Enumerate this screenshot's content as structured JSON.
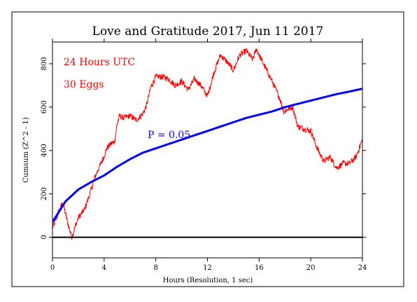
{
  "chart_data": {
    "type": "line",
    "title": "Love and Gratitude 2017, Jun 11 2017",
    "xlabel": "Hours (Resolution, 1 sec)",
    "ylabel": "Cumsum (Z^2 - 1)",
    "xlim": [
      0,
      24
    ],
    "ylim": [
      -95,
      900
    ],
    "x_ticks": [
      0,
      4,
      8,
      12,
      16,
      20,
      24
    ],
    "y_ticks": [
      0,
      200,
      400,
      600,
      800
    ],
    "annotations": [
      {
        "name": "hours",
        "text": "24 Hours UTC"
      },
      {
        "name": "eggs",
        "text": "30 Eggs"
      },
      {
        "name": "pvalue",
        "text": "P = 0.05"
      }
    ],
    "series": [
      {
        "id": "cumsum",
        "color": "#ff0000",
        "x": [
          0,
          0.5,
          0.8,
          1.0,
          1.2,
          1.4,
          1.5,
          1.7,
          2.0,
          2.5,
          3.0,
          3.3,
          3.6,
          3.9,
          4.2,
          4.5,
          4.8,
          5.0,
          5.2,
          5.5,
          6.0,
          6.5,
          7.0,
          7.3,
          7.6,
          8.0,
          8.5,
          9.0,
          9.5,
          10.0,
          10.5,
          11.0,
          11.5,
          12.0,
          12.5,
          13.0,
          13.5,
          14.0,
          14.5,
          15.0,
          15.5,
          15.8,
          16.0,
          16.5,
          17.0,
          17.3,
          17.6,
          17.9,
          18.2,
          18.6,
          19.0,
          19.5,
          20.0,
          20.5,
          21.0,
          21.5,
          22.0,
          22.5,
          23.0,
          23.5,
          24.0
        ],
        "y": [
          40,
          120,
          160,
          110,
          60,
          20,
          0,
          40,
          90,
          130,
          220,
          280,
          320,
          360,
          410,
          430,
          440,
          520,
          560,
          550,
          560,
          540,
          570,
          610,
          690,
          740,
          740,
          730,
          700,
          720,
          680,
          730,
          700,
          650,
          760,
          840,
          810,
          770,
          840,
          860,
          820,
          870,
          840,
          780,
          720,
          680,
          640,
          580,
          590,
          600,
          510,
          500,
          490,
          410,
          350,
          370,
          320,
          340,
          340,
          370,
          450
        ]
      },
      {
        "id": "p05",
        "color": "#0000ff",
        "envelope": "P = 0.05",
        "x": [
          0,
          1,
          2,
          3,
          4,
          5,
          6,
          7,
          8,
          9,
          10,
          11,
          12,
          13,
          14,
          15,
          16,
          17,
          18,
          19,
          20,
          21,
          22,
          23,
          24
        ],
        "y": [
          70,
          165,
          220,
          255,
          285,
          325,
          360,
          390,
          410,
          430,
          450,
          470,
          490,
          510,
          530,
          550,
          565,
          580,
          600,
          615,
          630,
          645,
          660,
          672,
          685
        ]
      },
      {
        "id": "zero",
        "color": "#000000",
        "x": [
          0,
          24
        ],
        "y": [
          0,
          0
        ]
      }
    ]
  }
}
